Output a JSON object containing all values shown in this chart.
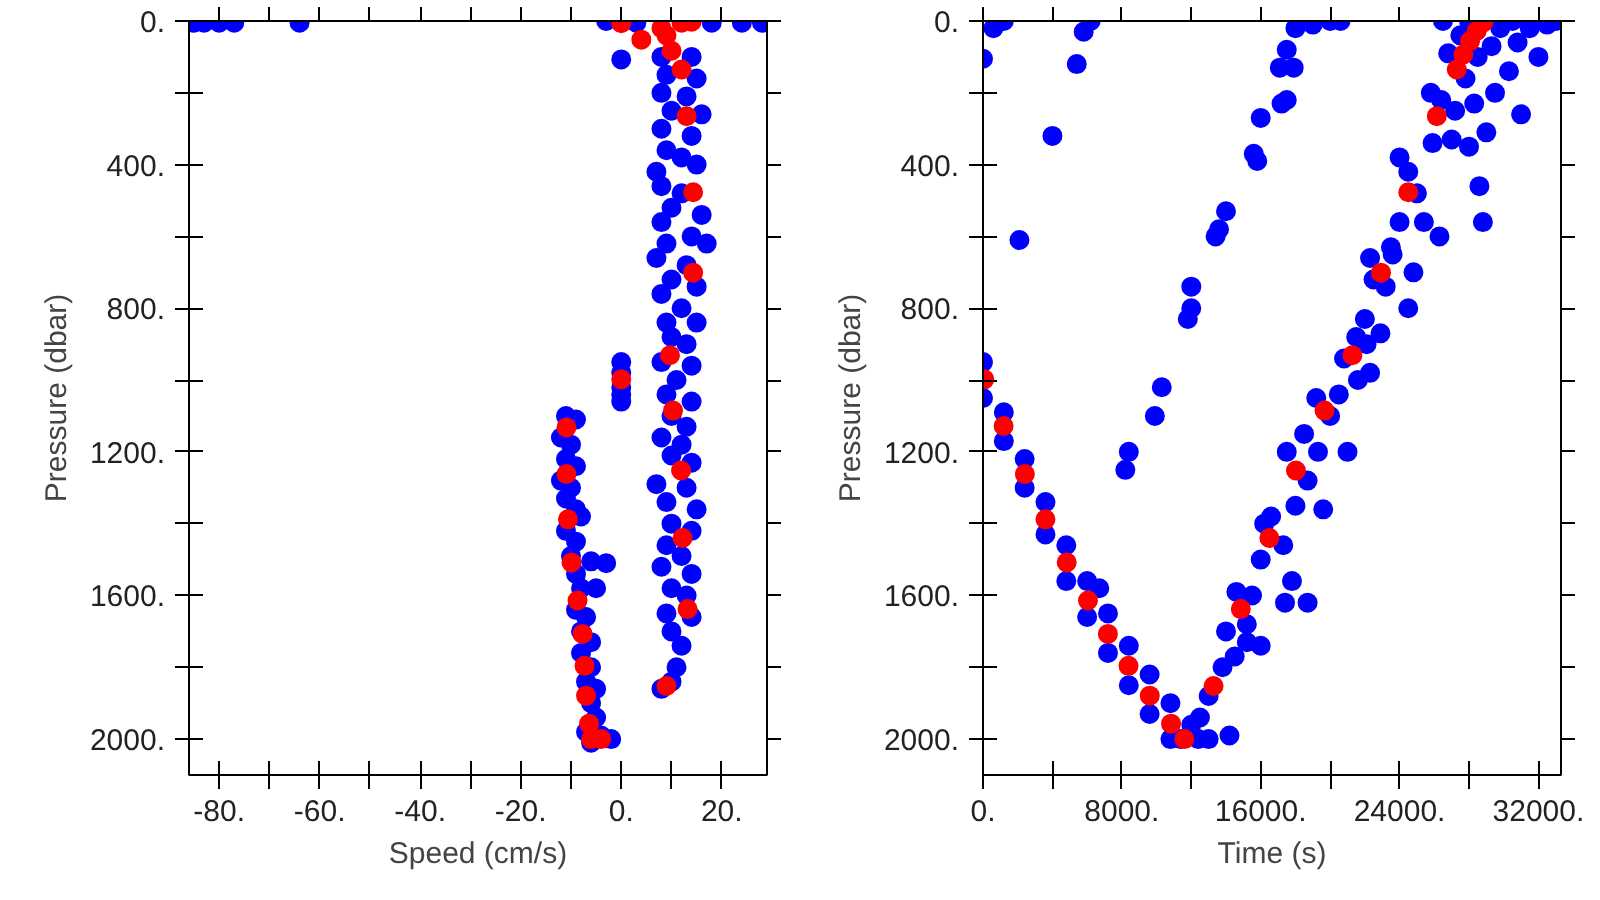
{
  "chart_data": [
    {
      "type": "scatter",
      "xlabel": "Speed (cm/s)",
      "ylabel": "Pressure (dbar)",
      "marker": "circle",
      "xlim": [
        -86,
        29
      ],
      "ylim": [
        2100,
        0
      ],
      "xticks": [
        {
          "value": -80,
          "label": "-80."
        },
        {
          "value": -70,
          "label": null
        },
        {
          "value": -60,
          "label": "-60."
        },
        {
          "value": -50,
          "label": null
        },
        {
          "value": -40,
          "label": "-40."
        },
        {
          "value": -30,
          "label": null
        },
        {
          "value": -20,
          "label": "-20."
        },
        {
          "value": -10,
          "label": null
        },
        {
          "value": 0,
          "label": "0."
        },
        {
          "value": 10,
          "label": null
        },
        {
          "value": 20,
          "label": "20."
        }
      ],
      "yticks": [
        {
          "value": 0,
          "label": "0."
        },
        {
          "value": 200,
          "label": null
        },
        {
          "value": 400,
          "label": "400."
        },
        {
          "value": 600,
          "label": null
        },
        {
          "value": 800,
          "label": "800."
        },
        {
          "value": 1000,
          "label": null
        },
        {
          "value": 1200,
          "label": "1200."
        },
        {
          "value": 1400,
          "label": null
        },
        {
          "value": 1600,
          "label": "1600."
        },
        {
          "value": 1800,
          "label": null
        },
        {
          "value": 2000,
          "label": "2000."
        }
      ],
      "series": [
        {
          "color": "#0000ff",
          "x": [
            -85,
            -83,
            -80,
            -77,
            -64,
            -3,
            3,
            18,
            24,
            28,
            0,
            8,
            14,
            9,
            15,
            8,
            13,
            10,
            16,
            8,
            14,
            9,
            12,
            7,
            15,
            8,
            12,
            10,
            16,
            8,
            14,
            9,
            17,
            7,
            13,
            10,
            15,
            8,
            12,
            9,
            15,
            10,
            13,
            8,
            14,
            11,
            9,
            14,
            10,
            13,
            8,
            12,
            10,
            14,
            7,
            13,
            9,
            15,
            10,
            14,
            9,
            12,
            8,
            14,
            10,
            13,
            9,
            14,
            10,
            12,
            11,
            8,
            10,
            0,
            0,
            0,
            0,
            0,
            -11,
            -9,
            -12,
            -10,
            -11,
            -9,
            -12,
            -10,
            -11,
            -9,
            -8,
            -11,
            -9,
            -10,
            -3,
            -6,
            -9,
            -8,
            -5,
            -9,
            -7,
            -8,
            -6,
            -8,
            -6,
            -7,
            -5,
            -6,
            -5,
            -7,
            -4,
            -2,
            -6
          ],
          "values": [
            5,
            5,
            5,
            5,
            5,
            0,
            5,
            5,
            5,
            5,
            107,
            100,
            100,
            150,
            160,
            200,
            210,
            250,
            260,
            300,
            320,
            360,
            380,
            420,
            400,
            460,
            480,
            520,
            540,
            560,
            600,
            620,
            620,
            660,
            680,
            720,
            740,
            760,
            800,
            840,
            840,
            880,
            900,
            950,
            960,
            1000,
            1040,
            1060,
            1100,
            1130,
            1160,
            1180,
            1210,
            1230,
            1290,
            1300,
            1340,
            1360,
            1400,
            1420,
            1460,
            1490,
            1520,
            1540,
            1580,
            1600,
            1650,
            1660,
            1700,
            1740,
            1800,
            1860,
            1840,
            950,
            980,
            1020,
            1040,
            1060,
            1100,
            1110,
            1160,
            1180,
            1220,
            1240,
            1280,
            1300,
            1330,
            1360,
            1380,
            1420,
            1450,
            1490,
            1510,
            1505,
            1540,
            1580,
            1580,
            1640,
            1660,
            1700,
            1730,
            1760,
            1800,
            1840,
            1860,
            1900,
            1940,
            1980,
            1990,
            2000,
            2010
          ]
        },
        {
          "color": "#ff0000",
          "x": [
            0,
            4,
            8,
            12,
            14,
            9,
            10,
            12,
            13,
            14.3,
            14.3,
            9.7,
            0,
            10.3,
            11.9,
            12.2,
            13.2,
            9,
            -10.9,
            -10.9,
            -10.6,
            -9.9,
            -8.7,
            -7.7,
            -7.3,
            -7,
            -6.4,
            -6,
            -4
          ],
          "values": [
            6,
            52,
            20,
            5,
            2,
            40,
            83,
            135,
            265,
            477,
            701,
            931,
            998,
            1085,
            1252,
            1440,
            1638,
            1852,
            1132,
            1262,
            1388,
            1508,
            1614,
            1707,
            1796,
            1879,
            1957,
            2000,
            2000
          ]
        }
      ]
    },
    {
      "type": "scatter",
      "xlabel": "Time (s)",
      "ylabel": "Pressure (dbar)",
      "marker": "circle",
      "xlim": [
        0,
        33300
      ],
      "ylim": [
        2100,
        0
      ],
      "xticks": [
        {
          "value": 0,
          "label": "0."
        },
        {
          "value": 4000,
          "label": null
        },
        {
          "value": 8000,
          "label": "8000."
        },
        {
          "value": 12000,
          "label": null
        },
        {
          "value": 16000,
          "label": "16000."
        },
        {
          "value": 20000,
          "label": null
        },
        {
          "value": 24000,
          "label": "24000."
        },
        {
          "value": 28000,
          "label": null
        },
        {
          "value": 32000,
          "label": "32000."
        }
      ],
      "yticks": [
        {
          "value": 0,
          "label": "0."
        },
        {
          "value": 200,
          "label": null
        },
        {
          "value": 400,
          "label": "400."
        },
        {
          "value": 600,
          "label": null
        },
        {
          "value": 800,
          "label": "800."
        },
        {
          "value": 1000,
          "label": null
        },
        {
          "value": 1200,
          "label": "1200."
        },
        {
          "value": 1400,
          "label": null
        },
        {
          "value": 1600,
          "label": "1600."
        },
        {
          "value": 1800,
          "label": null
        },
        {
          "value": 2000,
          "label": "2000."
        }
      ],
      "series": [
        {
          "color": "#0000ff",
          "x": [
            0,
            0,
            1200,
            1200,
            2400,
            2400,
            3600,
            3600,
            4800,
            4800,
            6000,
            6000,
            6700,
            7200,
            7200,
            8400,
            8400,
            9600,
            9600,
            10800,
            10800,
            11400,
            12000,
            12400,
            13000,
            14200,
            12500,
            13000,
            13800,
            14500,
            14000,
            15200,
            14600,
            15500,
            15200,
            16000,
            16600,
            17300,
            16200,
            17800,
            18000,
            17500,
            18700,
            19300,
            19600,
            18500,
            19200,
            20000,
            20500,
            21000,
            20800,
            21500,
            22100,
            22300,
            22000,
            22500,
            23200,
            22300,
            23500,
            24000,
            24500,
            24000,
            25000,
            25400,
            26300,
            24800,
            25900,
            26400,
            27200,
            25800,
            27000,
            27800,
            28300,
            26800,
            27500,
            28500,
            29300,
            29800,
            30300,
            30800,
            31500,
            32500,
            31000,
            29000,
            28600,
            29500,
            30500,
            28000,
            26500,
            33000,
            32000,
            28800,
            28000,
            22900,
            23600,
            24500,
            21600,
            18700,
            17400,
            16000,
            4000,
            2100,
            5400,
            5800,
            6200,
            8200,
            8400,
            9900,
            10300,
            11800,
            12000,
            12000,
            13400,
            14000,
            13600,
            15600,
            15800,
            16000,
            17200,
            17500,
            17100,
            17900,
            17500,
            18000,
            19000,
            20000,
            20600,
            600,
            1200,
            0
          ],
          "values": [
            950,
            1050,
            1090,
            1170,
            1220,
            1300,
            1340,
            1430,
            1460,
            1560,
            1560,
            1660,
            1580,
            1650,
            1760,
            1740,
            1850,
            1820,
            1930,
            1900,
            2000,
            2000,
            1960,
            2000,
            2000,
            1990,
            1940,
            1880,
            1800,
            1770,
            1700,
            1730,
            1590,
            1600,
            1680,
            1500,
            1380,
            1460,
            1400,
            1560,
            1350,
            1200,
            1280,
            1200,
            1360,
            1150,
            1050,
            1100,
            1040,
            1200,
            940,
            880,
            900,
            980,
            830,
            720,
            740,
            660,
            630,
            560,
            420,
            380,
            480,
            560,
            600,
            700,
            340,
            220,
            250,
            200,
            330,
            160,
            230,
            90,
            40,
            100,
            70,
            20,
            140,
            60,
            20,
            10,
            260,
            310,
            460,
            200,
            0,
            0,
            0,
            0,
            100,
            560,
            350,
            870,
            650,
            800,
            1000,
            1620,
            1620,
            1740,
            320,
            610,
            120,
            30,
            0,
            1250,
            1200,
            1100,
            1020,
            830,
            800,
            740,
            600,
            530,
            580,
            370,
            390,
            270,
            230,
            220,
            130,
            130,
            80,
            20,
            10,
            0,
            0,
            20,
            0,
            105
          ]
        },
        {
          "color": "#ff0000",
          "x": [
            77,
            1187,
            2412,
            3598,
            4823,
            6048,
            7197,
            8383,
            9608,
            10833,
            11600,
            13283,
            14853,
            16499,
            18030,
            19676,
            21284,
            22930,
            24500,
            26145,
            27294,
            27677,
            28060,
            28442,
            28825
          ],
          "values": [
            998,
            1128,
            1262,
            1388,
            1508,
            1614,
            1707,
            1796,
            1879,
            1957,
            2000,
            1852,
            1638,
            1440,
            1252,
            1085,
            931,
            701,
            477,
            265,
            135,
            93,
            56,
            28,
            4
          ]
        }
      ]
    }
  ]
}
